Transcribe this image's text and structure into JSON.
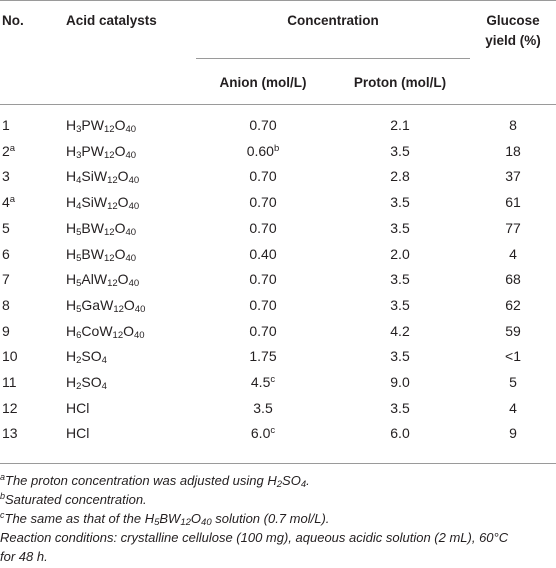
{
  "header": {
    "no": "No.",
    "catalyst": "Acid catalysts",
    "concentration": "Concentration",
    "anion": "Anion (mol/L)",
    "proton": "Proton (mol/L)",
    "yield_line1": "Glucose",
    "yield_line2": "yield (%)"
  },
  "rows": [
    {
      "no": "1",
      "no_sup": "",
      "cat": [
        [
          "H",
          "3"
        ],
        [
          "PW",
          "12"
        ],
        [
          "O",
          "40"
        ]
      ],
      "anion": "0.70",
      "anion_sup": "",
      "proton": "2.1",
      "yield": "8"
    },
    {
      "no": "2",
      "no_sup": "a",
      "cat": [
        [
          "H",
          "3"
        ],
        [
          "PW",
          "12"
        ],
        [
          "O",
          "40"
        ]
      ],
      "anion": "0.60",
      "anion_sup": "b",
      "proton": "3.5",
      "yield": "18"
    },
    {
      "no": "3",
      "no_sup": "",
      "cat": [
        [
          "H",
          "4"
        ],
        [
          "SiW",
          "12"
        ],
        [
          "O",
          "40"
        ]
      ],
      "anion": "0.70",
      "anion_sup": "",
      "proton": "2.8",
      "yield": "37"
    },
    {
      "no": "4",
      "no_sup": "a",
      "cat": [
        [
          "H",
          "4"
        ],
        [
          "SiW",
          "12"
        ],
        [
          "O",
          "40"
        ]
      ],
      "anion": "0.70",
      "anion_sup": "",
      "proton": "3.5",
      "yield": "61"
    },
    {
      "no": "5",
      "no_sup": "",
      "cat": [
        [
          "H",
          "5"
        ],
        [
          "BW",
          "12"
        ],
        [
          "O",
          "40"
        ]
      ],
      "anion": "0.70",
      "anion_sup": "",
      "proton": "3.5",
      "yield": "77"
    },
    {
      "no": "6",
      "no_sup": "",
      "cat": [
        [
          "H",
          "5"
        ],
        [
          "BW",
          "12"
        ],
        [
          "O",
          "40"
        ]
      ],
      "anion": "0.40",
      "anion_sup": "",
      "proton": "2.0",
      "yield": "4"
    },
    {
      "no": "7",
      "no_sup": "",
      "cat": [
        [
          "H",
          "5"
        ],
        [
          "AlW",
          "12"
        ],
        [
          "O",
          "40"
        ]
      ],
      "anion": "0.70",
      "anion_sup": "",
      "proton": "3.5",
      "yield": "68"
    },
    {
      "no": "8",
      "no_sup": "",
      "cat": [
        [
          "H",
          "5"
        ],
        [
          "GaW",
          "12"
        ],
        [
          "O",
          "40"
        ]
      ],
      "anion": "0.70",
      "anion_sup": "",
      "proton": "3.5",
      "yield": "62"
    },
    {
      "no": "9",
      "no_sup": "",
      "cat": [
        [
          "H",
          "6"
        ],
        [
          "CoW",
          "12"
        ],
        [
          "O",
          "40"
        ]
      ],
      "anion": "0.70",
      "anion_sup": "",
      "proton": "4.2",
      "yield": "59"
    },
    {
      "no": "10",
      "no_sup": "",
      "cat": [
        [
          "H",
          "2"
        ],
        [
          "SO",
          "4"
        ]
      ],
      "anion": "1.75",
      "anion_sup": "",
      "proton": "3.5",
      "yield": "<1"
    },
    {
      "no": "11",
      "no_sup": "",
      "cat": [
        [
          "H",
          "2"
        ],
        [
          "SO",
          "4"
        ]
      ],
      "anion": "4.5",
      "anion_sup": "c",
      "proton": "9.0",
      "yield": "5"
    },
    {
      "no": "12",
      "no_sup": "",
      "cat": [
        [
          "HCl",
          ""
        ]
      ],
      "anion": "3.5",
      "anion_sup": "",
      "proton": "3.5",
      "yield": "4"
    },
    {
      "no": "13",
      "no_sup": "",
      "cat": [
        [
          "HCl",
          ""
        ]
      ],
      "anion": "6.0",
      "anion_sup": "c",
      "proton": "6.0",
      "yield": "9"
    }
  ],
  "notes": {
    "a": {
      "mark": "a",
      "text": "The proton concentration was adjusted using H",
      "sub1": "2",
      "text2": "SO",
      "sub2": "4",
      "text3": "."
    },
    "b": {
      "mark": "b",
      "text": "Saturated concentration."
    },
    "c": {
      "mark": "c",
      "text": "The same as that of the H",
      "s1": "5",
      "t1": "BW",
      "s2": "12",
      "t2": "O",
      "s3": "40",
      "t3": " solution (0.7 mol/L)."
    },
    "conditions_line1": "Reaction conditions: crystalline cellulose (100 mg), aqueous acidic solution (2 mL), 60°C",
    "conditions_line2": "for 48 h."
  }
}
